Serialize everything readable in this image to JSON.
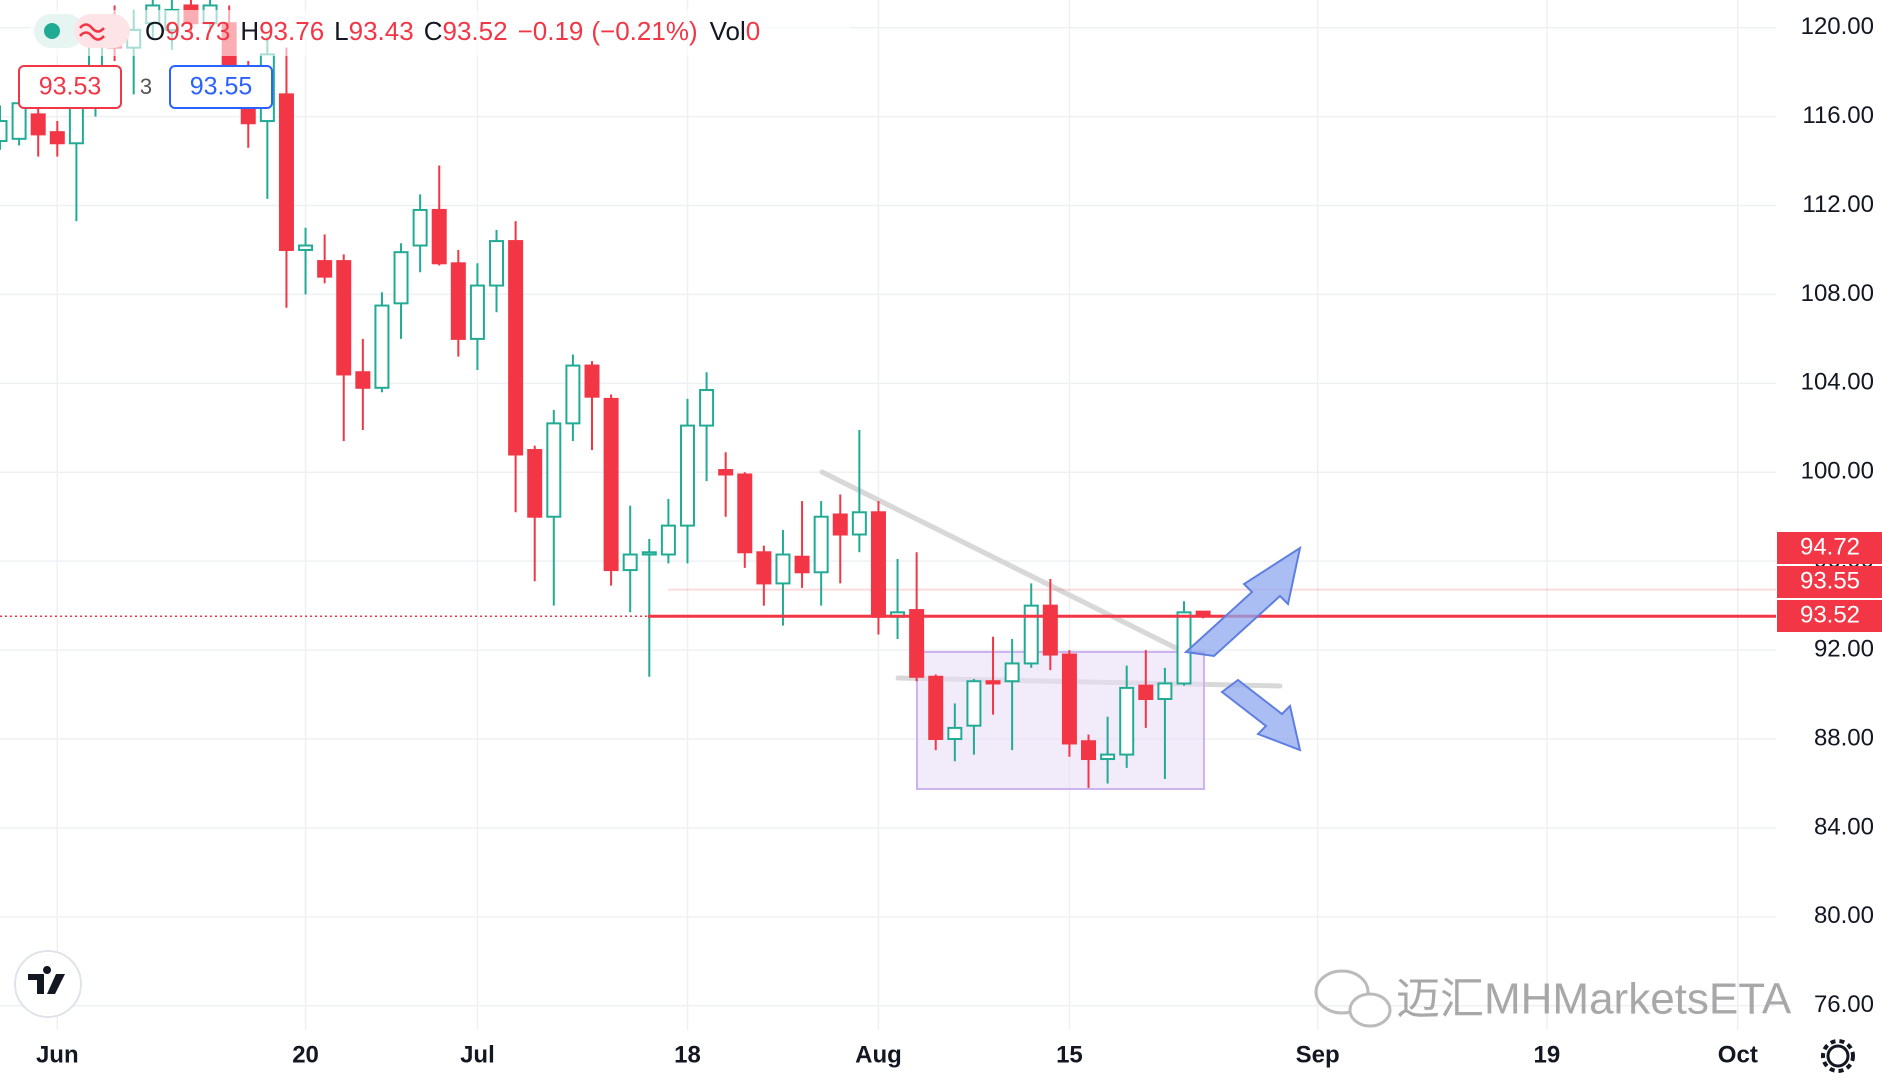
{
  "chart_data": {
    "type": "candlestick",
    "x": [
      -3,
      -2,
      -1,
      0,
      1,
      2,
      3,
      4,
      5,
      6,
      7,
      8,
      9,
      10,
      11,
      12,
      13,
      14,
      15,
      16,
      17,
      18,
      19,
      20,
      21,
      22,
      23,
      24,
      25,
      26,
      27,
      28,
      29,
      30,
      31,
      32,
      33,
      34,
      35,
      36,
      37,
      38,
      39,
      40,
      41,
      42,
      43,
      44,
      45,
      46,
      47,
      48,
      49,
      50,
      51,
      52,
      53,
      54,
      55,
      56,
      57,
      58,
      59,
      60
    ],
    "open": [
      114.9,
      115.0,
      116.1,
      115.3,
      114.8,
      116.5,
      120.4,
      119.1,
      120.2,
      119.9,
      121.0,
      120.2,
      120.2,
      118.0,
      115.8,
      117.0,
      110.0,
      109.5,
      109.5,
      104.5,
      103.8,
      107.6,
      110.2,
      111.8,
      109.4,
      106.0,
      108.4,
      110.4,
      101.0,
      98.0,
      102.2,
      104.8,
      103.3,
      95.6,
      96.3,
      96.3,
      97.6,
      102.1,
      100.1,
      99.9,
      96.4,
      95.0,
      96.2,
      95.5,
      98.1,
      97.2,
      98.2,
      93.5,
      93.8,
      90.8,
      88.0,
      88.6,
      90.6,
      90.6,
      91.4,
      94.0,
      91.8,
      87.9,
      87.1,
      87.3,
      90.4,
      89.8,
      90.5,
      93.73
    ],
    "high": [
      116.5,
      117.5,
      116.9,
      115.8,
      116.9,
      120.5,
      121.0,
      120.8,
      121.5,
      121.5,
      121.5,
      121.5,
      121.0,
      118.5,
      119.6,
      119.1,
      111.0,
      110.7,
      109.8,
      106.0,
      108.1,
      110.3,
      112.5,
      113.8,
      110.0,
      109.4,
      110.9,
      111.3,
      101.2,
      102.8,
      105.3,
      105.0,
      103.5,
      98.5,
      97.0,
      98.8,
      103.3,
      104.5,
      100.9,
      100.0,
      96.7,
      97.4,
      98.7,
      98.7,
      99.0,
      101.9,
      98.7,
      96.1,
      96.4,
      90.9,
      89.6,
      90.7,
      92.6,
      92.5,
      95.0,
      95.2,
      92.0,
      88.2,
      89.0,
      91.3,
      92.0,
      91.2,
      94.2,
      93.76
    ],
    "low": [
      114.5,
      114.7,
      114.2,
      114.2,
      111.3,
      116.0,
      118.5,
      117.0,
      119.5,
      119.0,
      119.8,
      119.8,
      117.5,
      114.6,
      112.3,
      107.4,
      108.0,
      108.5,
      101.4,
      101.9,
      103.6,
      106.0,
      109.0,
      109.3,
      105.2,
      104.6,
      107.2,
      98.2,
      95.1,
      94.0,
      101.4,
      101.0,
      94.9,
      93.7,
      90.8,
      95.9,
      95.9,
      99.6,
      98.0,
      95.7,
      94.0,
      93.1,
      94.8,
      94.0,
      95.0,
      96.4,
      92.7,
      92.5,
      90.6,
      87.5,
      87.0,
      87.3,
      89.1,
      87.5,
      91.2,
      91.1,
      87.2,
      85.8,
      86.0,
      86.7,
      88.5,
      86.2,
      90.4,
      93.43
    ],
    "close": [
      115.8,
      116.6,
      115.2,
      114.8,
      116.4,
      119.5,
      119.1,
      119.9,
      121.0,
      120.8,
      120.2,
      121.0,
      118.0,
      115.7,
      118.8,
      110.0,
      110.2,
      108.8,
      104.4,
      103.8,
      107.5,
      109.9,
      111.8,
      109.4,
      106.0,
      108.4,
      110.4,
      100.8,
      98.0,
      102.2,
      104.8,
      103.4,
      95.6,
      96.3,
      96.4,
      97.6,
      102.1,
      103.7,
      99.9,
      96.4,
      95.0,
      96.3,
      95.5,
      98.0,
      97.2,
      98.2,
      93.5,
      93.7,
      90.8,
      88.0,
      88.5,
      90.6,
      90.5,
      91.4,
      94.0,
      91.8,
      87.8,
      87.1,
      87.3,
      90.3,
      89.8,
      90.5,
      93.7,
      93.52
    ],
    "up_color": "#22ab94",
    "down_color": "#f23645",
    "xlim": [
      -3,
      90
    ],
    "xticks": [
      {
        "value": 0,
        "label": "Jun"
      },
      {
        "value": 13,
        "label": "20"
      },
      {
        "value": 22,
        "label": "Jul"
      },
      {
        "value": 33,
        "label": "18"
      },
      {
        "value": 43,
        "label": "Aug"
      },
      {
        "value": 53,
        "label": "15"
      },
      {
        "value": 66,
        "label": "Sep"
      },
      {
        "value": 78,
        "label": "19"
      },
      {
        "value": 88,
        "label": "Oct"
      }
    ],
    "ylim": [
      75,
      121.2
    ],
    "yticks": [
      {
        "value": 76,
        "label": "76.00"
      },
      {
        "value": 80,
        "label": "80.00"
      },
      {
        "value": 84,
        "label": "84.00"
      },
      {
        "value": 88,
        "label": "88.00"
      },
      {
        "value": 92,
        "label": "92.00"
      },
      {
        "value": 96,
        "label": "96.00"
      },
      {
        "value": 100,
        "label": "100.00"
      },
      {
        "value": 104,
        "label": "104.00"
      },
      {
        "value": 108,
        "label": "108.00"
      },
      {
        "value": 112,
        "label": "112.00"
      },
      {
        "value": 116,
        "label": "116.00"
      },
      {
        "value": 120,
        "label": "120.00"
      }
    ],
    "grid": true,
    "legend": {
      "items": [
        {
          "label": "O",
          "value": 93.73
        },
        {
          "label": "H",
          "value": 93.76
        },
        {
          "label": "L",
          "value": 93.43
        },
        {
          "label": "C",
          "value": 93.52
        }
      ],
      "change": {
        "value": -0.19,
        "label": "−0.19"
      },
      "change_pct": {
        "value": -0.21,
        "label": "(−0.21%)"
      },
      "volume": {
        "label": "Vol",
        "value": 0
      }
    },
    "quote": {
      "bid": 93.53,
      "spread": 3,
      "ask": 93.55
    },
    "price_labels": [
      {
        "value": 94.72,
        "color": "#f23645"
      },
      {
        "value": 93.55,
        "color": "#f23645"
      },
      {
        "value": 93.52,
        "color": "#f23645"
      }
    ]
  },
  "watermark": "迈汇MHMarketsETA"
}
